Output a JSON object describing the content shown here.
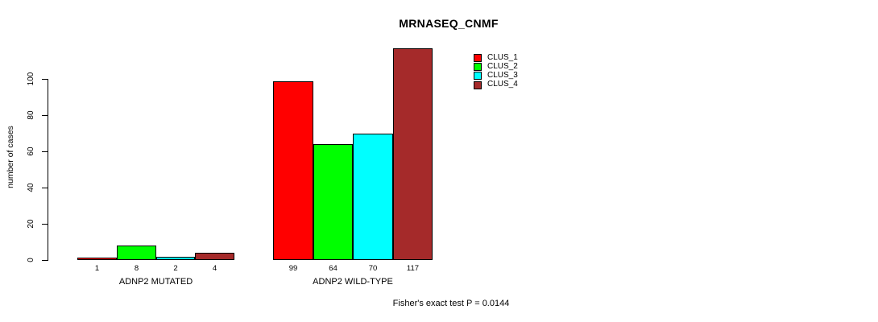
{
  "chart_data": {
    "type": "bar",
    "title": "MRNASEQ_CNMF",
    "ylabel": "number of cases",
    "ylim": [
      0,
      100
    ],
    "yticks": [
      0,
      20,
      40,
      60,
      80,
      100
    ],
    "grid": false,
    "legend_position": "top-right",
    "categories": [
      "ADNP2 MUTATED",
      "ADNP2 WILD-TYPE"
    ],
    "series": [
      {
        "name": "CLUS_1",
        "color": "#FF0000",
        "values": [
          1,
          99
        ]
      },
      {
        "name": "CLUS_2",
        "color": "#00FF00",
        "values": [
          8,
          64
        ]
      },
      {
        "name": "CLUS_3",
        "color": "#00FFFF",
        "values": [
          2,
          70
        ]
      },
      {
        "name": "CLUS_4",
        "color": "#A52A2A",
        "values": [
          4,
          117
        ]
      }
    ],
    "bar_value_labels": [
      [
        1,
        8,
        2,
        4
      ],
      [
        99,
        64,
        70,
        117
      ]
    ],
    "annotation": "Fisher's exact test P = 0.0144"
  }
}
